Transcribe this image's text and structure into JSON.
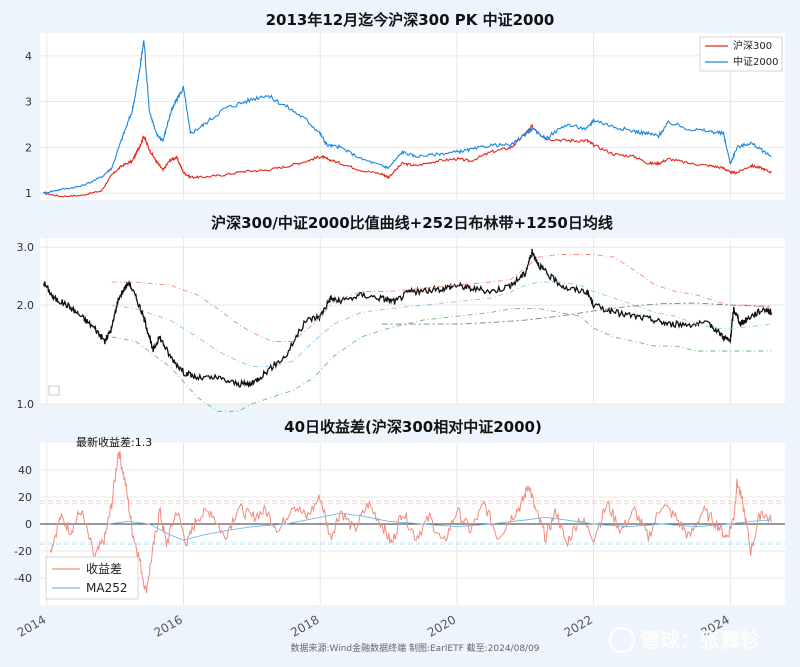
{
  "chart_data": [
    {
      "type": "line",
      "title": "2013年12月迄今沪深300 PK 中证2000",
      "ylim": [
        0.85,
        4.5
      ],
      "yticks": [
        "1",
        "2",
        "3",
        "4"
      ],
      "xlim": [
        2013.9,
        2024.8
      ],
      "xticks": [
        "2014",
        "2016",
        "2018",
        "2020",
        "2022",
        "2024"
      ],
      "legend_position": "top-right",
      "series": [
        {
          "name": "沪深300",
          "color": "#e8261a",
          "x": [
            2013.95,
            2014.2,
            2014.5,
            2014.8,
            2014.95,
            2015.1,
            2015.25,
            2015.35,
            2015.42,
            2015.5,
            2015.6,
            2015.7,
            2015.8,
            2015.9,
            2016.0,
            2016.1,
            2016.3,
            2016.6,
            2016.9,
            2017.2,
            2017.5,
            2017.8,
            2018.0,
            2018.1,
            2018.3,
            2018.6,
            2018.9,
            2019.0,
            2019.2,
            2019.4,
            2019.7,
            2020.0,
            2020.2,
            2020.5,
            2020.8,
            2021.0,
            2021.1,
            2021.3,
            2021.6,
            2021.9,
            2022.0,
            2022.3,
            2022.6,
            2022.8,
            2022.95,
            2023.1,
            2023.4,
            2023.7,
            2023.9,
            2024.0,
            2024.1,
            2024.3,
            2024.45,
            2024.6
          ],
          "values": [
            1.0,
            0.93,
            0.95,
            1.05,
            1.4,
            1.6,
            1.7,
            2.0,
            2.25,
            1.95,
            1.7,
            1.5,
            1.72,
            1.78,
            1.45,
            1.35,
            1.35,
            1.4,
            1.48,
            1.5,
            1.58,
            1.7,
            1.8,
            1.75,
            1.65,
            1.5,
            1.42,
            1.35,
            1.65,
            1.6,
            1.7,
            1.75,
            1.7,
            1.9,
            2.0,
            2.3,
            2.45,
            2.2,
            2.15,
            2.15,
            2.05,
            1.85,
            1.8,
            1.65,
            1.65,
            1.75,
            1.65,
            1.6,
            1.55,
            1.45,
            1.45,
            1.6,
            1.55,
            1.45
          ]
        },
        {
          "name": "中证2000",
          "color": "#1a87e0",
          "x": [
            2013.95,
            2014.2,
            2014.5,
            2014.8,
            2014.95,
            2015.1,
            2015.25,
            2015.35,
            2015.42,
            2015.5,
            2015.6,
            2015.7,
            2015.8,
            2015.9,
            2016.0,
            2016.1,
            2016.3,
            2016.6,
            2016.9,
            2017.2,
            2017.5,
            2017.8,
            2018.0,
            2018.1,
            2018.3,
            2018.6,
            2018.9,
            2019.0,
            2019.2,
            2019.4,
            2019.7,
            2020.0,
            2020.2,
            2020.5,
            2020.8,
            2021.0,
            2021.1,
            2021.3,
            2021.6,
            2021.9,
            2022.0,
            2022.3,
            2022.6,
            2022.8,
            2022.95,
            2023.1,
            2023.4,
            2023.7,
            2023.9,
            2024.0,
            2024.1,
            2024.3,
            2024.45,
            2024.6
          ],
          "values": [
            1.0,
            1.08,
            1.15,
            1.35,
            1.55,
            2.2,
            2.8,
            3.6,
            4.35,
            2.8,
            2.3,
            2.15,
            2.7,
            3.05,
            3.3,
            2.3,
            2.5,
            2.85,
            3.0,
            3.15,
            2.9,
            2.6,
            2.3,
            2.05,
            2.0,
            1.75,
            1.6,
            1.55,
            1.9,
            1.8,
            1.85,
            1.9,
            1.95,
            2.05,
            2.05,
            2.3,
            2.4,
            2.2,
            2.5,
            2.4,
            2.6,
            2.45,
            2.35,
            2.3,
            2.25,
            2.55,
            2.4,
            2.35,
            2.3,
            1.65,
            2.0,
            2.1,
            1.95,
            1.8
          ]
        }
      ]
    },
    {
      "type": "line",
      "title": "沪深300/中证2000比值曲线+252日布林带+1250日均线",
      "ylim": [
        1.0,
        3.2
      ],
      "yticks": [
        "1.0",
        "2.0",
        "3.0"
      ],
      "xlim": [
        2013.9,
        2024.8
      ],
      "series": [
        {
          "color": "#111111",
          "x": [
            2013.95,
            2014.1,
            2014.3,
            2014.5,
            2014.7,
            2014.85,
            2014.95,
            2015.05,
            2015.2,
            2015.35,
            2015.45,
            2015.55,
            2015.65,
            2015.8,
            2016.0,
            2016.2,
            2016.5,
            2016.8,
            2017.0,
            2017.2,
            2017.5,
            2017.8,
            2018.0,
            2018.15,
            2018.3,
            2018.6,
            2018.9,
            2019.1,
            2019.3,
            2019.5,
            2019.8,
            2020.0,
            2020.2,
            2020.5,
            2020.8,
            2021.0,
            2021.1,
            2021.2,
            2021.35,
            2021.6,
            2021.9,
            2022.0,
            2022.3,
            2022.6,
            2022.9,
            2023.1,
            2023.4,
            2023.7,
            2023.9,
            2024.0,
            2024.05,
            2024.15,
            2024.3,
            2024.5,
            2024.6
          ],
          "values": [
            2.35,
            2.1,
            2.0,
            1.85,
            1.7,
            1.55,
            1.7,
            2.1,
            2.35,
            2.0,
            1.75,
            1.45,
            1.6,
            1.4,
            1.25,
            1.2,
            1.2,
            1.15,
            1.15,
            1.25,
            1.4,
            1.8,
            1.85,
            2.1,
            2.05,
            2.15,
            2.1,
            2.05,
            2.2,
            2.2,
            2.25,
            2.3,
            2.25,
            2.2,
            2.3,
            2.5,
            2.9,
            2.65,
            2.45,
            2.25,
            2.2,
            2.0,
            1.9,
            1.85,
            1.8,
            1.75,
            1.75,
            1.75,
            1.6,
            1.55,
            1.95,
            1.75,
            1.85,
            1.95,
            1.9
          ]
        },
        {
          "color": "#f28b7d",
          "x": [
            2014.95,
            2015.3,
            2015.8,
            2016.2,
            2016.5,
            2016.8,
            2017.0,
            2017.3,
            2017.6,
            2017.9,
            2018.2,
            2018.6,
            2019.0,
            2019.5,
            2020.0,
            2020.5,
            2020.8,
            2021.0,
            2021.2,
            2021.5,
            2021.8,
            2022.0,
            2022.3,
            2022.6,
            2022.9,
            2023.2,
            2023.5,
            2023.8,
            2024.0,
            2024.3,
            2024.6
          ],
          "values": [
            2.35,
            2.35,
            2.3,
            2.15,
            1.95,
            1.75,
            1.65,
            1.55,
            1.55,
            1.75,
            2.05,
            2.2,
            2.2,
            2.25,
            2.3,
            2.35,
            2.4,
            2.6,
            2.8,
            2.85,
            2.85,
            2.85,
            2.8,
            2.55,
            2.3,
            2.2,
            2.15,
            2.05,
            2.0,
            2.0,
            1.95
          ]
        },
        {
          "color": "#86c6ec",
          "x": [
            2014.95,
            2015.3,
            2015.8,
            2016.2,
            2016.5,
            2016.8,
            2017.0,
            2017.3,
            2017.6,
            2017.9,
            2018.2,
            2018.6,
            2019.0,
            2019.5,
            2020.0,
            2020.5,
            2020.8,
            2021.0,
            2021.2,
            2021.5,
            2021.8,
            2022.0,
            2022.3,
            2022.6,
            2022.9,
            2023.2,
            2023.5,
            2023.8,
            2024.0,
            2024.3,
            2024.6
          ],
          "values": [
            2.0,
            1.95,
            1.8,
            1.6,
            1.45,
            1.35,
            1.3,
            1.3,
            1.35,
            1.55,
            1.75,
            1.9,
            1.95,
            2.0,
            2.05,
            2.1,
            2.2,
            2.3,
            2.35,
            2.35,
            2.3,
            2.2,
            2.1,
            2.0,
            1.9,
            1.85,
            1.75,
            1.7,
            1.7,
            1.72,
            1.75
          ]
        },
        {
          "color": "#6dbe6a",
          "x": [
            2014.95,
            2015.3,
            2015.8,
            2016.2,
            2016.5,
            2016.8,
            2017.0,
            2017.3,
            2017.6,
            2017.9,
            2018.2,
            2018.6,
            2019.0,
            2019.5,
            2020.0,
            2020.5,
            2020.8,
            2021.0,
            2021.2,
            2021.5,
            2021.8,
            2022.0,
            2022.3,
            2022.6,
            2022.9,
            2023.2,
            2023.5,
            2023.8,
            2024.0,
            2024.3,
            2024.6
          ],
          "values": [
            1.6,
            1.55,
            1.3,
            1.05,
            0.95,
            0.95,
            1.0,
            1.05,
            1.1,
            1.2,
            1.4,
            1.6,
            1.7,
            1.8,
            1.85,
            1.9,
            1.95,
            1.95,
            1.95,
            1.9,
            1.85,
            1.7,
            1.6,
            1.55,
            1.5,
            1.5,
            1.45,
            1.45,
            1.45,
            1.45,
            1.45
          ]
        },
        {
          "color": "#7d7d7d",
          "x": [
            2018.9,
            2019.5,
            2020.0,
            2020.5,
            2021.0,
            2021.5,
            2022.0,
            2022.5,
            2023.0,
            2023.5,
            2024.0,
            2024.6
          ],
          "values": [
            1.75,
            1.75,
            1.75,
            1.77,
            1.8,
            1.85,
            1.92,
            1.98,
            2.02,
            2.03,
            2.0,
            1.98
          ]
        }
      ]
    },
    {
      "type": "line",
      "title": "40日收益差(沪深300相对中证2000)",
      "ylim": [
        -60,
        60
      ],
      "yticks": [
        "40",
        "20",
        "0",
        "-20",
        "-40"
      ],
      "xlim": [
        2013.9,
        2024.8
      ],
      "xticks": [
        "2014",
        "2016",
        "2018",
        "2020",
        "2022",
        "2024"
      ],
      "annotation": "最新收益差:1.3",
      "legend_position": "bottom-left",
      "hlines": [
        0,
        17,
        -14,
        15,
        -15
      ],
      "series": [
        {
          "name": "收益差",
          "color": "#f28b7d",
          "x": [
            2014.05,
            2014.2,
            2014.35,
            2014.5,
            2014.7,
            2014.85,
            2014.95,
            2015.05,
            2015.15,
            2015.25,
            2015.35,
            2015.45,
            2015.55,
            2015.65,
            2015.75,
            2015.9,
            2016.05,
            2016.2,
            2016.4,
            2016.6,
            2016.8,
            2017.0,
            2017.2,
            2017.4,
            2017.6,
            2017.8,
            2018.0,
            2018.15,
            2018.3,
            2018.5,
            2018.7,
            2018.9,
            2019.05,
            2019.2,
            2019.4,
            2019.6,
            2019.8,
            2020.0,
            2020.2,
            2020.4,
            2020.6,
            2020.8,
            2020.95,
            2021.05,
            2021.15,
            2021.3,
            2021.45,
            2021.6,
            2021.8,
            2022.0,
            2022.2,
            2022.4,
            2022.6,
            2022.8,
            2023.0,
            2023.2,
            2023.4,
            2023.6,
            2023.8,
            2023.95,
            2024.05,
            2024.1,
            2024.2,
            2024.3,
            2024.45,
            2024.6
          ],
          "values": [
            -20,
            5,
            -5,
            10,
            -25,
            -10,
            15,
            55,
            30,
            -5,
            -25,
            -50,
            -20,
            10,
            -15,
            10,
            -15,
            5,
            10,
            -10,
            12,
            5,
            10,
            -5,
            15,
            5,
            20,
            -10,
            10,
            -5,
            15,
            0,
            -15,
            10,
            -10,
            5,
            -15,
            10,
            -5,
            15,
            -10,
            5,
            15,
            30,
            10,
            -10,
            10,
            -15,
            5,
            -10,
            15,
            -5,
            10,
            -10,
            15,
            5,
            -10,
            10,
            0,
            -10,
            5,
            32,
            10,
            -20,
            10,
            1.3
          ]
        },
        {
          "name": "MA252",
          "color": "#73b9e6",
          "x": [
            2014.9,
            2015.2,
            2015.5,
            2015.8,
            2016.0,
            2016.3,
            2016.6,
            2017.0,
            2017.5,
            2018.0,
            2018.3,
            2018.6,
            2019.0,
            2019.5,
            2020.0,
            2020.5,
            2021.0,
            2021.3,
            2021.6,
            2022.0,
            2022.5,
            2023.0,
            2023.5,
            2024.0,
            2024.3,
            2024.6
          ],
          "values": [
            0,
            2,
            0,
            -8,
            -12,
            -8,
            -5,
            -2,
            0,
            5,
            8,
            6,
            2,
            0,
            -2,
            0,
            3,
            5,
            3,
            0,
            -2,
            0,
            -2,
            0,
            2,
            3
          ]
        }
      ]
    }
  ],
  "footer": {
    "source": "数据来源:Wind金融数据终端  制图:EarlETF 截至:2024/08/09",
    "watermark": "雪球：张翼轸"
  }
}
